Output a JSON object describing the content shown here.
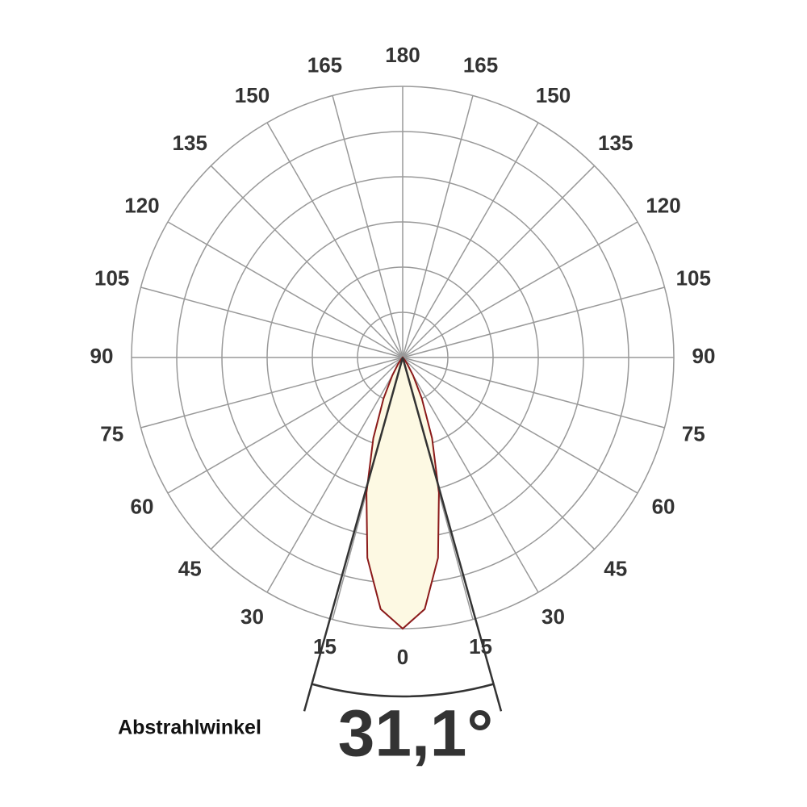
{
  "chart_data": {
    "type": "polar",
    "angle_ticks": [
      0,
      15,
      30,
      45,
      60,
      75,
      90,
      105,
      120,
      135,
      150,
      165,
      180
    ],
    "rlim": [
      0,
      6
    ],
    "rticks": [
      1,
      2,
      3,
      4,
      5,
      6
    ],
    "series": [
      {
        "color": "#8b1a1a",
        "fill": "#fdf9e3",
        "angles": [
          -40,
          -35,
          -30,
          -25,
          -20,
          -15,
          -10,
          -5,
          0,
          5,
          10,
          15,
          20,
          25,
          30,
          35,
          40
        ],
        "values": [
          0.06,
          0.18,
          0.46,
          1.0,
          1.9,
          3.1,
          4.5,
          5.59,
          6,
          5.59,
          4.5,
          3.1,
          1.9,
          1.0,
          0.46,
          0.18,
          0.06
        ]
      }
    ],
    "beam_angle": 31.1,
    "beam_angle_label": "31,1°",
    "annotation": "Abstrahlwinkel"
  }
}
